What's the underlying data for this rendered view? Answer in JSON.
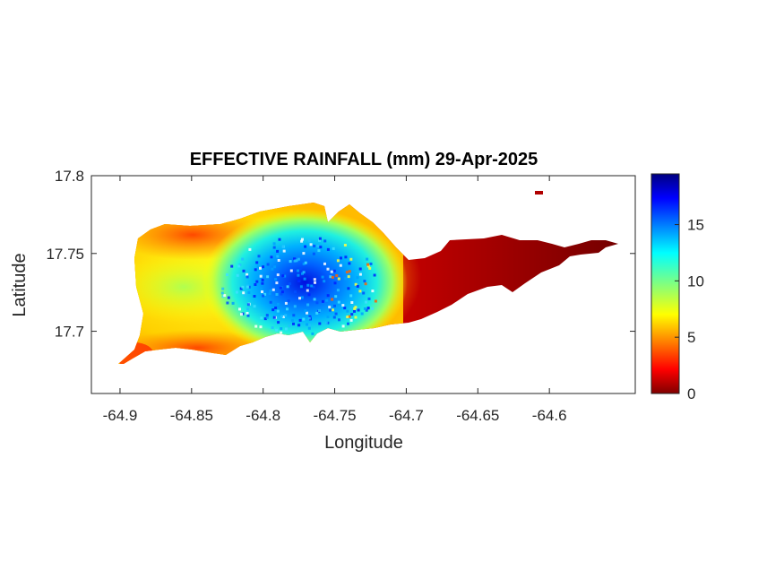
{
  "chart_data": {
    "type": "heatmap",
    "title": "EFFECTIVE RAINFALL (mm) 29-Apr-2025",
    "xlabel": "Longitude",
    "ylabel": "Latitude",
    "xlim": [
      -64.92,
      -64.54
    ],
    "ylim": [
      17.66,
      17.8
    ],
    "x_ticks": [
      -64.9,
      -64.85,
      -64.8,
      -64.75,
      -64.7,
      -64.65,
      -64.6
    ],
    "x_tick_labels": [
      "-64.9",
      "-64.85",
      "-64.8",
      "-64.75",
      "-64.7",
      "-64.65",
      "-64.6"
    ],
    "y_ticks": [
      17.7,
      17.75,
      17.8
    ],
    "y_tick_labels": [
      "17.7",
      "17.75",
      "17.8"
    ],
    "colorbar": {
      "colormap": "jet",
      "range": [
        0,
        19.5
      ],
      "ticks": [
        0,
        5,
        10,
        15
      ],
      "tick_labels": [
        "0",
        "5",
        "10",
        "15"
      ],
      "placement": "right"
    },
    "field_description_points": [
      {
        "lon": -64.9,
        "lat": 17.68,
        "value": 2
      },
      {
        "lon": -64.88,
        "lat": 17.74,
        "value": 4
      },
      {
        "lon": -64.87,
        "lat": 17.71,
        "value": 8
      },
      {
        "lon": -64.84,
        "lat": 17.76,
        "value": 4
      },
      {
        "lon": -64.82,
        "lat": 17.72,
        "value": 11
      },
      {
        "lon": -64.78,
        "lat": 17.735,
        "value": 18
      },
      {
        "lon": -64.76,
        "lat": 17.725,
        "value": 14
      },
      {
        "lon": -64.73,
        "lat": 17.74,
        "value": 9
      },
      {
        "lon": -64.71,
        "lat": 17.73,
        "value": 5
      },
      {
        "lon": -64.68,
        "lat": 17.74,
        "value": 3
      },
      {
        "lon": -64.64,
        "lat": 17.74,
        "value": 1.5
      },
      {
        "lon": -64.6,
        "lat": 17.75,
        "value": 0.5
      },
      {
        "lon": -64.625,
        "lat": 17.787,
        "value": 1
      }
    ]
  }
}
